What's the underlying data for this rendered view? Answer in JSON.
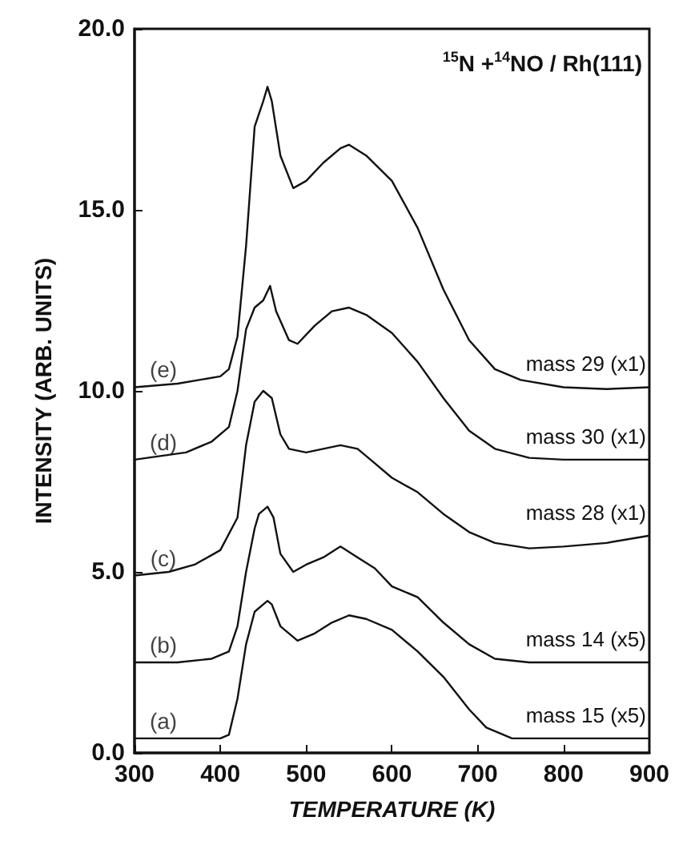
{
  "chart_data": {
    "type": "line",
    "xlabel": "TEMPERATURE (K)",
    "ylabel": "INTENSITY (ARB. UNITS)",
    "xlim": [
      300,
      900
    ],
    "xticks": [
      300,
      400,
      500,
      600,
      700,
      800,
      900
    ],
    "ylim": [
      0,
      20
    ],
    "yticks": [
      {
        "value": 0,
        "label": "0.0"
      },
      {
        "value": 5,
        "label": "5.0"
      },
      {
        "value": 10,
        "label": "10.0"
      },
      {
        "value": 15,
        "label": "15.0"
      },
      {
        "value": 20,
        "label": "20.0"
      }
    ],
    "grid": false,
    "legend": false,
    "marker": "none",
    "line_style": "solid",
    "series": [
      {
        "name": "mass 29 (x1)",
        "color": "#111111",
        "x": [
          300,
          350,
          400,
          410,
          420,
          430,
          440,
          450,
          455,
          460,
          470,
          485,
          500,
          520,
          540,
          550,
          570,
          600,
          630,
          660,
          690,
          720,
          750,
          800,
          850,
          900
        ],
        "values": [
          10.1,
          10.2,
          10.4,
          10.6,
          11.5,
          14,
          17.3,
          18,
          18.4,
          18,
          16.5,
          15.6,
          15.8,
          16.3,
          16.7,
          16.8,
          16.5,
          15.8,
          14.5,
          12.8,
          11.4,
          10.6,
          10.3,
          10.1,
          10.05,
          10.1
        ]
      },
      {
        "name": "mass 30 (x1)",
        "color": "#111111",
        "x": [
          300,
          330,
          360,
          390,
          410,
          420,
          430,
          440,
          450,
          458,
          465,
          480,
          490,
          510,
          530,
          550,
          570,
          600,
          630,
          660,
          690,
          720,
          760,
          800,
          900
        ],
        "values": [
          8.1,
          8.2,
          8.3,
          8.6,
          9,
          10,
          11.7,
          12.3,
          12.5,
          12.9,
          12.2,
          11.4,
          11.3,
          11.8,
          12.2,
          12.3,
          12.1,
          11.6,
          10.8,
          9.8,
          8.9,
          8.4,
          8.15,
          8.1,
          8.1
        ]
      },
      {
        "name": "mass 28 (x1)",
        "color": "#111111",
        "x": [
          300,
          340,
          370,
          400,
          420,
          430,
          440,
          450,
          460,
          470,
          480,
          500,
          520,
          540,
          560,
          580,
          600,
          630,
          660,
          690,
          720,
          760,
          800,
          850,
          900
        ],
        "values": [
          4.9,
          5,
          5.2,
          5.6,
          6.5,
          8.5,
          9.7,
          10,
          9.8,
          8.8,
          8.4,
          8.3,
          8.4,
          8.5,
          8.4,
          8,
          7.6,
          7.2,
          6.6,
          6.1,
          5.8,
          5.65,
          5.7,
          5.8,
          6
        ]
      },
      {
        "name": "mass 14 (x5)",
        "color": "#111111",
        "x": [
          300,
          350,
          390,
          410,
          420,
          430,
          440,
          445,
          455,
          462,
          470,
          485,
          500,
          520,
          540,
          560,
          580,
          600,
          630,
          660,
          690,
          720,
          760,
          900
        ],
        "values": [
          2.5,
          2.5,
          2.6,
          2.8,
          3.5,
          5,
          6.2,
          6.6,
          6.8,
          6.5,
          5.5,
          5,
          5.2,
          5.4,
          5.7,
          5.4,
          5.1,
          4.6,
          4.3,
          3.6,
          3,
          2.6,
          2.5,
          2.5
        ]
      },
      {
        "name": "mass 15 (x5)",
        "color": "#111111",
        "x": [
          300,
          350,
          400,
          410,
          420,
          430,
          440,
          455,
          460,
          470,
          490,
          510,
          530,
          550,
          570,
          600,
          630,
          660,
          690,
          710,
          740,
          900
        ],
        "values": [
          0.4,
          0.4,
          0.4,
          0.5,
          1.5,
          3,
          3.9,
          4.2,
          4.1,
          3.5,
          3.1,
          3.3,
          3.6,
          3.8,
          3.7,
          3.4,
          2.8,
          2.1,
          1.2,
          0.7,
          0.4,
          0.4
        ]
      }
    ],
    "annotations": [
      "$^{15}$N +$^{14}$NO / Rh(111)",
      "(e)",
      "(d)",
      "(c)",
      "(b)",
      "(a)"
    ]
  }
}
